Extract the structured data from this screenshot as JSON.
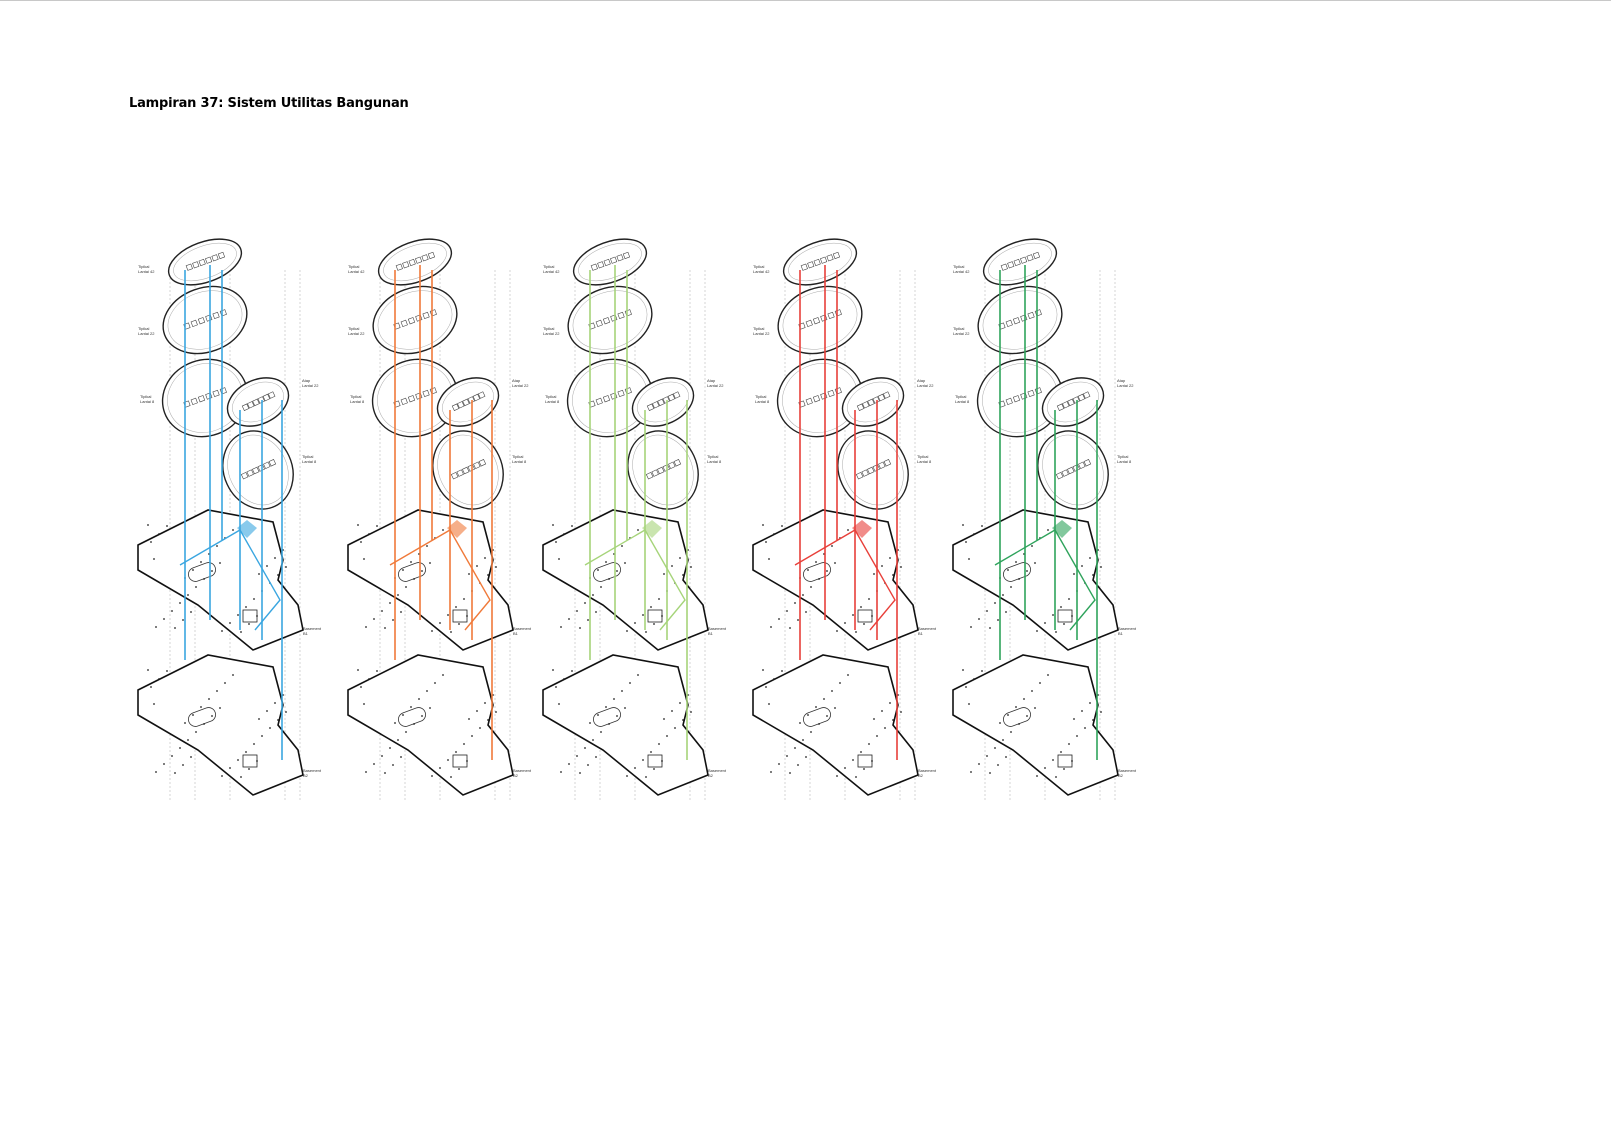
{
  "page": {
    "title": "Lampiran 37: Sistem Utilitas Bangunan"
  },
  "figure": {
    "floor_labels": [
      "Tipikal Lantai 42",
      "Tipikal Lantai 22",
      "Tipikal Lantai 8",
      "Atap Lantai 22",
      "Tipikal Lantai 8",
      "Basement B1",
      "Basement B2"
    ],
    "diagrams": [
      {
        "color": "#3aa6e0",
        "line_style": "solid"
      },
      {
        "color": "#f07a3a",
        "line_style": "solid"
      },
      {
        "color": "#a6d47a",
        "line_style": "solid"
      },
      {
        "color": "#e8403a",
        "line_style": "solid"
      },
      {
        "color": "#2fa35c",
        "line_style": "solid"
      }
    ]
  }
}
